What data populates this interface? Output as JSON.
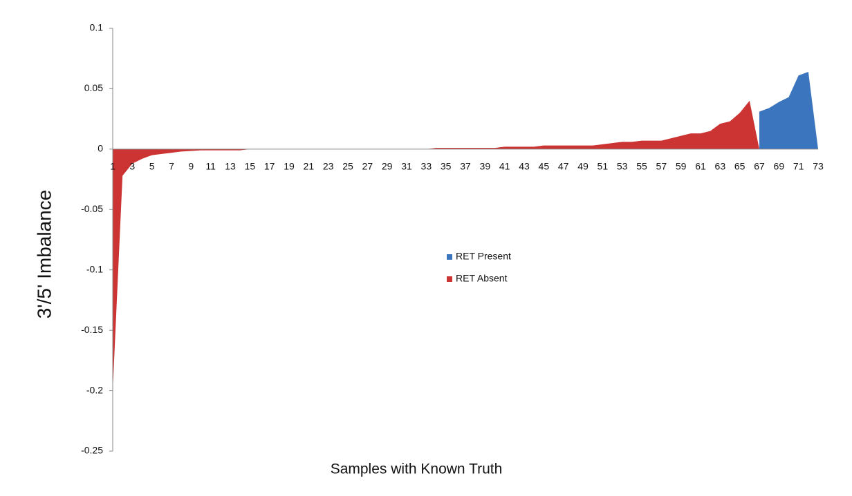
{
  "chart_data": {
    "type": "area",
    "y_label": "3'/5' Imbalance",
    "x_label": "Samples with Known Truth",
    "categories": [
      "1",
      null,
      "3",
      null,
      "5",
      null,
      "7",
      null,
      "9",
      null,
      "11",
      null,
      "13",
      null,
      "15",
      null,
      "17",
      null,
      "19",
      null,
      "21",
      null,
      "23",
      null,
      "25",
      null,
      "27",
      null,
      "29",
      null,
      "31",
      null,
      "33",
      null,
      "35",
      null,
      "37",
      null,
      "39",
      null,
      "41",
      null,
      "43",
      null,
      "45",
      null,
      "47",
      null,
      "49",
      null,
      "51",
      null,
      "53",
      null,
      "55",
      null,
      "57",
      null,
      "59",
      null,
      "61",
      null,
      "63",
      null,
      "65",
      null,
      "67",
      null,
      "69",
      null,
      "71",
      null,
      "73"
    ],
    "series": [
      {
        "name": "RET Present",
        "color": "#3a75be",
        "values": [
          null,
          null,
          null,
          null,
          null,
          null,
          null,
          null,
          null,
          null,
          null,
          null,
          null,
          null,
          null,
          null,
          null,
          null,
          null,
          null,
          null,
          null,
          null,
          null,
          null,
          null,
          null,
          null,
          null,
          null,
          null,
          null,
          null,
          null,
          null,
          null,
          null,
          null,
          null,
          null,
          null,
          null,
          null,
          null,
          null,
          null,
          null,
          null,
          null,
          null,
          null,
          null,
          null,
          null,
          null,
          null,
          null,
          null,
          null,
          null,
          null,
          null,
          null,
          null,
          null,
          null,
          0.031,
          0.034,
          0.039,
          0.043,
          0.061,
          0.064,
          0
        ]
      },
      {
        "name": "RET Absent",
        "color": "#cc3333",
        "values": [
          -0.2,
          -0.022,
          -0.012,
          -0.008,
          -0.005,
          -0.004,
          -0.003,
          -0.002,
          -0.0015,
          -0.001,
          -0.001,
          -0.001,
          -0.001,
          -0.001,
          0,
          0,
          0,
          0,
          0,
          0,
          0,
          0,
          0,
          0,
          0,
          0,
          0,
          0,
          0,
          0,
          0,
          0,
          0,
          0.001,
          0.001,
          0.001,
          0.001,
          0.001,
          0.001,
          0.001,
          0.002,
          0.002,
          0.002,
          0.002,
          0.003,
          0.003,
          0.003,
          0.003,
          0.003,
          0.003,
          0.004,
          0.005,
          0.006,
          0.006,
          0.007,
          0.007,
          0.007,
          0.009,
          0.011,
          0.013,
          0.013,
          0.015,
          0.021,
          0.023,
          0.03,
          0.04,
          0,
          null,
          null,
          null,
          null,
          null,
          null
        ]
      }
    ],
    "ylim": [
      -0.25,
      0.1
    ],
    "yticks": [
      -0.25,
      -0.2,
      -0.15,
      -0.1,
      -0.05,
      0,
      0.05,
      0.1
    ],
    "grid": false
  }
}
